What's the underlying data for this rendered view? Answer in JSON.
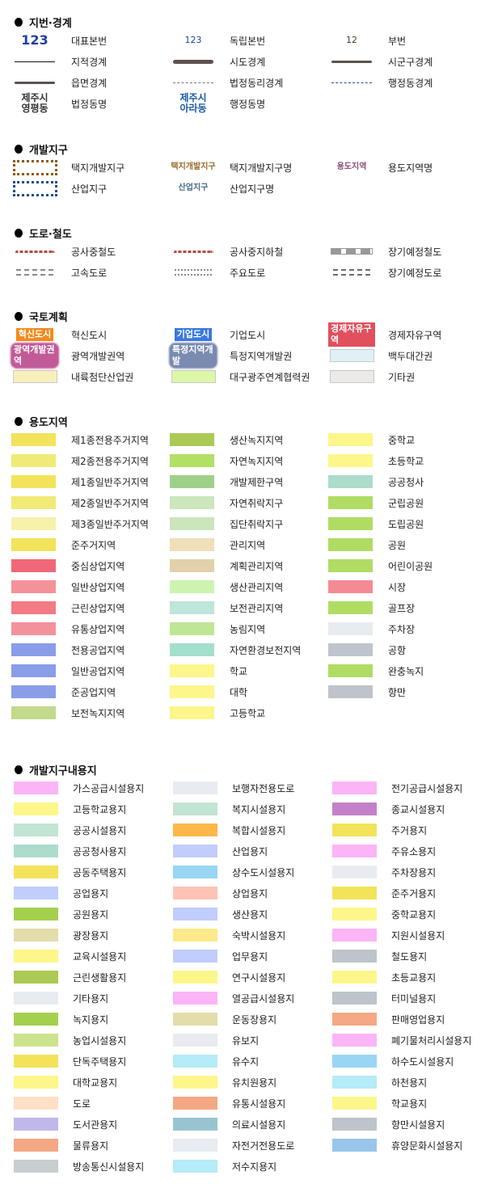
{
  "sections": [
    {
      "id": "parcel",
      "title": "지번·경계",
      "items": [
        {
          "label": "대표본번",
          "symbol": {
            "type": "num",
            "text": "123",
            "color": "#1f3ea8",
            "size": "big"
          }
        },
        {
          "label": "독립본번",
          "symbol": {
            "type": "num",
            "text": "123",
            "color": "#1f3ea8",
            "size": "small"
          }
        },
        {
          "label": "부번",
          "symbol": {
            "type": "num",
            "text": "12",
            "color": "#4a3a2a",
            "size": "small"
          }
        },
        {
          "label": "지적경계",
          "symbol": {
            "type": "line",
            "style": "solid",
            "color": "#111111",
            "weight": 1
          }
        },
        {
          "label": "시도경계",
          "symbol": {
            "type": "line",
            "style": "solid",
            "color": "#5c5250",
            "weight": 5
          }
        },
        {
          "label": "시군구경계",
          "symbol": {
            "type": "line",
            "style": "solid",
            "color": "#5c5250",
            "weight": 3
          }
        },
        {
          "label": "읍면경계",
          "symbol": {
            "type": "line",
            "style": "solid",
            "color": "#5c5250",
            "weight": 3
          }
        },
        {
          "label": "법정동리경계",
          "symbol": {
            "type": "line",
            "style": "dashed",
            "color": "#777777",
            "weight": 1
          }
        },
        {
          "label": "행정동경계",
          "symbol": {
            "type": "line",
            "style": "dashed",
            "color": "#1a4ea0",
            "weight": 1
          }
        },
        {
          "label": "법정동명",
          "symbol": {
            "type": "text",
            "text": "제주시\n영평동",
            "color": "#333333"
          }
        },
        {
          "label": "행정동명",
          "symbol": {
            "type": "text",
            "text": "제주시\n아라동",
            "color": "#1a5aa8"
          }
        }
      ]
    },
    {
      "id": "devzone",
      "title": "개발지구",
      "items": [
        {
          "label": "택지개발지구",
          "symbol": {
            "type": "dashbox",
            "color": "#8b5a14"
          }
        },
        {
          "label": "택지개발지구명",
          "symbol": {
            "type": "ctext",
            "text": "택지개발지구",
            "color": "#9a6a2a"
          }
        },
        {
          "label": "용도지역명",
          "symbol": {
            "type": "ctext",
            "text": "용도지역",
            "color": "#8a4a78"
          }
        },
        {
          "label": "산업지구",
          "symbol": {
            "type": "dashbox",
            "color": "#1a4f8a"
          }
        },
        {
          "label": "산업지구명",
          "symbol": {
            "type": "ctext",
            "text": "산업지구",
            "color": "#4a6a8a"
          }
        }
      ]
    },
    {
      "id": "road",
      "title": "도로·철도",
      "items": [
        {
          "label": "공사중철도",
          "symbol": {
            "type": "line",
            "style": "dotted",
            "color": "#b24a44",
            "weight": 3
          }
        },
        {
          "label": "공사중지하철",
          "symbol": {
            "type": "line",
            "style": "dotted",
            "color": "#b24a44",
            "weight": 3
          }
        },
        {
          "label": "장기예정철도",
          "symbol": {
            "type": "rail",
            "color": "#999999"
          }
        },
        {
          "label": "고속도로",
          "symbol": {
            "type": "double",
            "style": "dashed",
            "color": "#8a8a8a"
          }
        },
        {
          "label": "주요도로",
          "symbol": {
            "type": "double",
            "style": "dotted",
            "color": "#8a8a8a"
          }
        },
        {
          "label": "장기예정도로",
          "symbol": {
            "type": "double",
            "style": "dashed",
            "color": "#6a6a7a"
          }
        }
      ]
    },
    {
      "id": "national",
      "title": "국토계획",
      "items": [
        {
          "label": "혁신도시",
          "symbol": {
            "type": "badge",
            "text": "혁신도시",
            "color": "#f28a1c"
          }
        },
        {
          "label": "기업도시",
          "symbol": {
            "type": "badge",
            "text": "기업도시",
            "color": "#3a78e0"
          }
        },
        {
          "label": "경제자유구역",
          "symbol": {
            "type": "badge",
            "text": "경제자유구역",
            "color": "#e0505e"
          }
        },
        {
          "label": "광역개발권역",
          "symbol": {
            "type": "halo",
            "text": "광역개발권역",
            "color": "#c25a98"
          }
        },
        {
          "label": "특정지역개발권",
          "symbol": {
            "type": "halo",
            "text": "특정지역개발",
            "color": "#7a8ab0"
          }
        },
        {
          "label": "백두대간권",
          "symbol": {
            "type": "box",
            "color": "#dff1f4"
          }
        },
        {
          "label": "내륙첨단산업권",
          "symbol": {
            "type": "box",
            "color": "#f8efbd"
          }
        },
        {
          "label": "대구광주연계협력권",
          "symbol": {
            "type": "box",
            "color": "#ddf7a8"
          }
        },
        {
          "label": "기타권",
          "symbol": {
            "type": "box",
            "color": "#ebeae6"
          }
        }
      ]
    },
    {
      "id": "zoning",
      "title": "용도지역",
      "items": [
        {
          "label": "제1종전용주거지역",
          "symbol": {
            "type": "fill",
            "color": "#f2e35a"
          }
        },
        {
          "label": "생산녹지지역",
          "symbol": {
            "type": "fill",
            "color": "#abc955"
          }
        },
        {
          "label": "중학교",
          "symbol": {
            "type": "fill",
            "color": "#fdf68a"
          }
        },
        {
          "label": "제2종전용주거지역",
          "symbol": {
            "type": "fill",
            "color": "#f0eb76"
          }
        },
        {
          "label": "자연녹지지역",
          "symbol": {
            "type": "fill",
            "color": "#b0e064"
          }
        },
        {
          "label": "초등학교",
          "symbol": {
            "type": "fill",
            "color": "#fdf68a"
          }
        },
        {
          "label": "제1종일반주거지역",
          "symbol": {
            "type": "fill",
            "color": "#f2e35a"
          }
        },
        {
          "label": "개발제한구역",
          "symbol": {
            "type": "fill",
            "color": "#9fd08a"
          }
        },
        {
          "label": "공공청사",
          "symbol": {
            "type": "fill",
            "color": "#addccb"
          }
        },
        {
          "label": "제2종일반주거지역",
          "symbol": {
            "type": "fill",
            "color": "#f0eb76"
          }
        },
        {
          "label": "자연취락지구",
          "symbol": {
            "type": "fill",
            "color": "#cbe6bb"
          }
        },
        {
          "label": "군립공원",
          "symbol": {
            "type": "fill",
            "color": "#b0dc64"
          }
        },
        {
          "label": "제3종일반주거지역",
          "symbol": {
            "type": "fill",
            "color": "#f6f1ab"
          }
        },
        {
          "label": "집단취락지구",
          "symbol": {
            "type": "fill",
            "color": "#cbe6bb"
          }
        },
        {
          "label": "도립공원",
          "symbol": {
            "type": "fill",
            "color": "#b0dc64"
          }
        },
        {
          "label": "준주거지역",
          "symbol": {
            "type": "fill",
            "color": "#f2e35a"
          }
        },
        {
          "label": "관리지역",
          "symbol": {
            "type": "fill",
            "color": "#f0dfbb"
          }
        },
        {
          "label": "공원",
          "symbol": {
            "type": "fill",
            "color": "#b0dc64"
          }
        },
        {
          "label": "중심상업지역",
          "symbol": {
            "type": "fill",
            "color": "#f06878"
          }
        },
        {
          "label": "계획관리지역",
          "symbol": {
            "type": "fill",
            "color": "#e2d0ab"
          }
        },
        {
          "label": "어린이공원",
          "symbol": {
            "type": "fill",
            "color": "#b0dc64"
          }
        },
        {
          "label": "일반상업지역",
          "symbol": {
            "type": "fill",
            "color": "#f4929a"
          }
        },
        {
          "label": "생산관리지역",
          "symbol": {
            "type": "fill",
            "color": "#cdf3b1"
          }
        },
        {
          "label": "시장",
          "symbol": {
            "type": "fill",
            "color": "#f48a94"
          }
        },
        {
          "label": "근린상업지역",
          "symbol": {
            "type": "fill",
            "color": "#f47a84"
          }
        },
        {
          "label": "보전관리지역",
          "symbol": {
            "type": "fill",
            "color": "#bee6da"
          }
        },
        {
          "label": "골프장",
          "symbol": {
            "type": "fill",
            "color": "#b0dc64"
          }
        },
        {
          "label": "유통상업지역",
          "symbol": {
            "type": "fill",
            "color": "#f4929a"
          }
        },
        {
          "label": "농림지역",
          "symbol": {
            "type": "fill",
            "color": "#bfe696"
          }
        },
        {
          "label": "주차장",
          "symbol": {
            "type": "fill",
            "color": "#e8ebef"
          }
        },
        {
          "label": "전용공업지역",
          "symbol": {
            "type": "fill",
            "color": "#8a9de8"
          }
        },
        {
          "label": "자연환경보전지역",
          "symbol": {
            "type": "fill",
            "color": "#a2dfcd"
          }
        },
        {
          "label": "공항",
          "symbol": {
            "type": "fill",
            "color": "#bec4c9"
          }
        },
        {
          "label": "일반공업지역",
          "symbol": {
            "type": "fill",
            "color": "#8a9de8"
          }
        },
        {
          "label": "학교",
          "symbol": {
            "type": "fill",
            "color": "#fdf68a"
          }
        },
        {
          "label": "완충녹지",
          "symbol": {
            "type": "fill",
            "color": "#b0dc64"
          }
        },
        {
          "label": "준공업지역",
          "symbol": {
            "type": "fill",
            "color": "#8a9de8"
          }
        },
        {
          "label": "대학",
          "symbol": {
            "type": "fill",
            "color": "#fdf68a"
          }
        },
        {
          "label": "항만",
          "symbol": {
            "type": "fill",
            "color": "#bec4c9"
          }
        },
        {
          "label": "보전녹지지역",
          "symbol": {
            "type": "fill",
            "color": "#c2da8a"
          }
        },
        {
          "label": "고등학교",
          "symbol": {
            "type": "fill",
            "color": "#fdf68a"
          }
        }
      ]
    },
    {
      "id": "devland",
      "title": "개발지구내용지",
      "items": [
        {
          "label": "가스공급시설용지",
          "symbol": {
            "type": "fill",
            "color": "#fbb4f6"
          }
        },
        {
          "label": "보행자전용도로",
          "symbol": {
            "type": "fill",
            "color": "#e8ebef"
          }
        },
        {
          "label": "전기공급시설용지",
          "symbol": {
            "type": "fill",
            "color": "#fbb4f6"
          }
        },
        {
          "label": "고등학교용지",
          "symbol": {
            "type": "fill",
            "color": "#fdf68a"
          }
        },
        {
          "label": "복지시설용지",
          "symbol": {
            "type": "fill",
            "color": "#c2e4d3"
          }
        },
        {
          "label": "종교시설용지",
          "symbol": {
            "type": "fill",
            "color": "#c382c7"
          }
        },
        {
          "label": "공공시설용지",
          "symbol": {
            "type": "fill",
            "color": "#c2e4d3"
          }
        },
        {
          "label": "복합시설용지",
          "symbol": {
            "type": "fill",
            "color": "#feb84a"
          }
        },
        {
          "label": "주거용지",
          "symbol": {
            "type": "fill",
            "color": "#f2e35a"
          }
        },
        {
          "label": "공공청사용지",
          "symbol": {
            "type": "fill",
            "color": "#addccb"
          }
        },
        {
          "label": "산업용지",
          "symbol": {
            "type": "fill",
            "color": "#c0cdfd"
          }
        },
        {
          "label": "주유소용지",
          "symbol": {
            "type": "fill",
            "color": "#fbb4f6"
          }
        },
        {
          "label": "공동주택용지",
          "symbol": {
            "type": "fill",
            "color": "#f2e35a"
          }
        },
        {
          "label": "상수도시설용지",
          "symbol": {
            "type": "fill",
            "color": "#98d6f4"
          }
        },
        {
          "label": "주차장용지",
          "symbol": {
            "type": "fill",
            "color": "#e8ebef"
          }
        },
        {
          "label": "공업용지",
          "symbol": {
            "type": "fill",
            "color": "#c0cdfd"
          }
        },
        {
          "label": "상업용지",
          "symbol": {
            "type": "fill",
            "color": "#fdc4b6"
          }
        },
        {
          "label": "준주거용지",
          "symbol": {
            "type": "fill",
            "color": "#f2e35a"
          }
        },
        {
          "label": "공원용지",
          "symbol": {
            "type": "fill",
            "color": "#a5d04e"
          }
        },
        {
          "label": "생산용지",
          "symbol": {
            "type": "fill",
            "color": "#c0cdfd"
          }
        },
        {
          "label": "중학교용지",
          "symbol": {
            "type": "fill",
            "color": "#fdf68a"
          }
        },
        {
          "label": "광장용지",
          "symbol": {
            "type": "fill",
            "color": "#e3dcab"
          }
        },
        {
          "label": "숙박시설용지",
          "symbol": {
            "type": "fill",
            "color": "#fde88a"
          }
        },
        {
          "label": "지원시설용지",
          "symbol": {
            "type": "fill",
            "color": "#fbb4f6"
          }
        },
        {
          "label": "교육시설용지",
          "symbol": {
            "type": "fill",
            "color": "#fdf68a"
          }
        },
        {
          "label": "업무용지",
          "symbol": {
            "type": "fill",
            "color": "#c0cdfd"
          }
        },
        {
          "label": "철도용지",
          "symbol": {
            "type": "fill",
            "color": "#bec4c9"
          }
        },
        {
          "label": "근린생활용지",
          "symbol": {
            "type": "fill",
            "color": "#abc955"
          }
        },
        {
          "label": "연구시설용지",
          "symbol": {
            "type": "fill",
            "color": "#fdf68a"
          }
        },
        {
          "label": "초등교용지",
          "symbol": {
            "type": "fill",
            "color": "#fdf68a"
          }
        },
        {
          "label": "기타용지",
          "symbol": {
            "type": "fill",
            "color": "#e8ebef"
          }
        },
        {
          "label": "열공급시설용지",
          "symbol": {
            "type": "fill",
            "color": "#fbb4f6"
          }
        },
        {
          "label": "터미널용지",
          "symbol": {
            "type": "fill",
            "color": "#bec4c9"
          }
        },
        {
          "label": "녹지용지",
          "symbol": {
            "type": "fill",
            "color": "#a5d04e"
          }
        },
        {
          "label": "운동장용지",
          "symbol": {
            "type": "fill",
            "color": "#e3dcab"
          }
        },
        {
          "label": "판매영업용지",
          "symbol": {
            "type": "fill",
            "color": "#f4a884"
          }
        },
        {
          "label": "농업시설용지",
          "symbol": {
            "type": "fill",
            "color": "#cce38e"
          }
        },
        {
          "label": "유보지",
          "symbol": {
            "type": "fill",
            "color": "#e8ebef"
          }
        },
        {
          "label": "폐기물처리시설용지",
          "symbol": {
            "type": "fill",
            "color": "#fbb4f6"
          }
        },
        {
          "label": "단독주택용지",
          "symbol": {
            "type": "fill",
            "color": "#f2e35a"
          }
        },
        {
          "label": "유수지",
          "symbol": {
            "type": "fill",
            "color": "#b4ecf8"
          }
        },
        {
          "label": "하수도시설용지",
          "symbol": {
            "type": "fill",
            "color": "#98d6f4"
          }
        },
        {
          "label": "대학교용지",
          "symbol": {
            "type": "fill",
            "color": "#fdf68a"
          }
        },
        {
          "label": "유치원용지",
          "symbol": {
            "type": "fill",
            "color": "#fdf68a"
          }
        },
        {
          "label": "하천용지",
          "symbol": {
            "type": "fill",
            "color": "#b4ecf8"
          }
        },
        {
          "label": "도로",
          "symbol": {
            "type": "fill",
            "color": "#fde0c6"
          }
        },
        {
          "label": "유통시설용지",
          "symbol": {
            "type": "fill",
            "color": "#f4a884"
          }
        },
        {
          "label": "학교용지",
          "symbol": {
            "type": "fill",
            "color": "#fdf68a"
          }
        },
        {
          "label": "도서관용지",
          "symbol": {
            "type": "fill",
            "color": "#c0b8ea"
          }
        },
        {
          "label": "의료시설용지",
          "symbol": {
            "type": "fill",
            "color": "#98c4d2"
          }
        },
        {
          "label": "항만시설용지",
          "symbol": {
            "type": "fill",
            "color": "#bec4c9"
          }
        },
        {
          "label": "물류용지",
          "symbol": {
            "type": "fill",
            "color": "#f4a884"
          }
        },
        {
          "label": "자전거전용도로",
          "symbol": {
            "type": "fill",
            "color": "#e8ebef"
          }
        },
        {
          "label": "휴양문화시설용지",
          "symbol": {
            "type": "fill",
            "color": "#98c6ea"
          }
        },
        {
          "label": "방송통신시설용지",
          "symbol": {
            "type": "fill",
            "color": "#c8cdd0"
          }
        },
        {
          "label": "저수지용지",
          "symbol": {
            "type": "fill",
            "color": "#b4ecf8"
          }
        }
      ]
    }
  ]
}
